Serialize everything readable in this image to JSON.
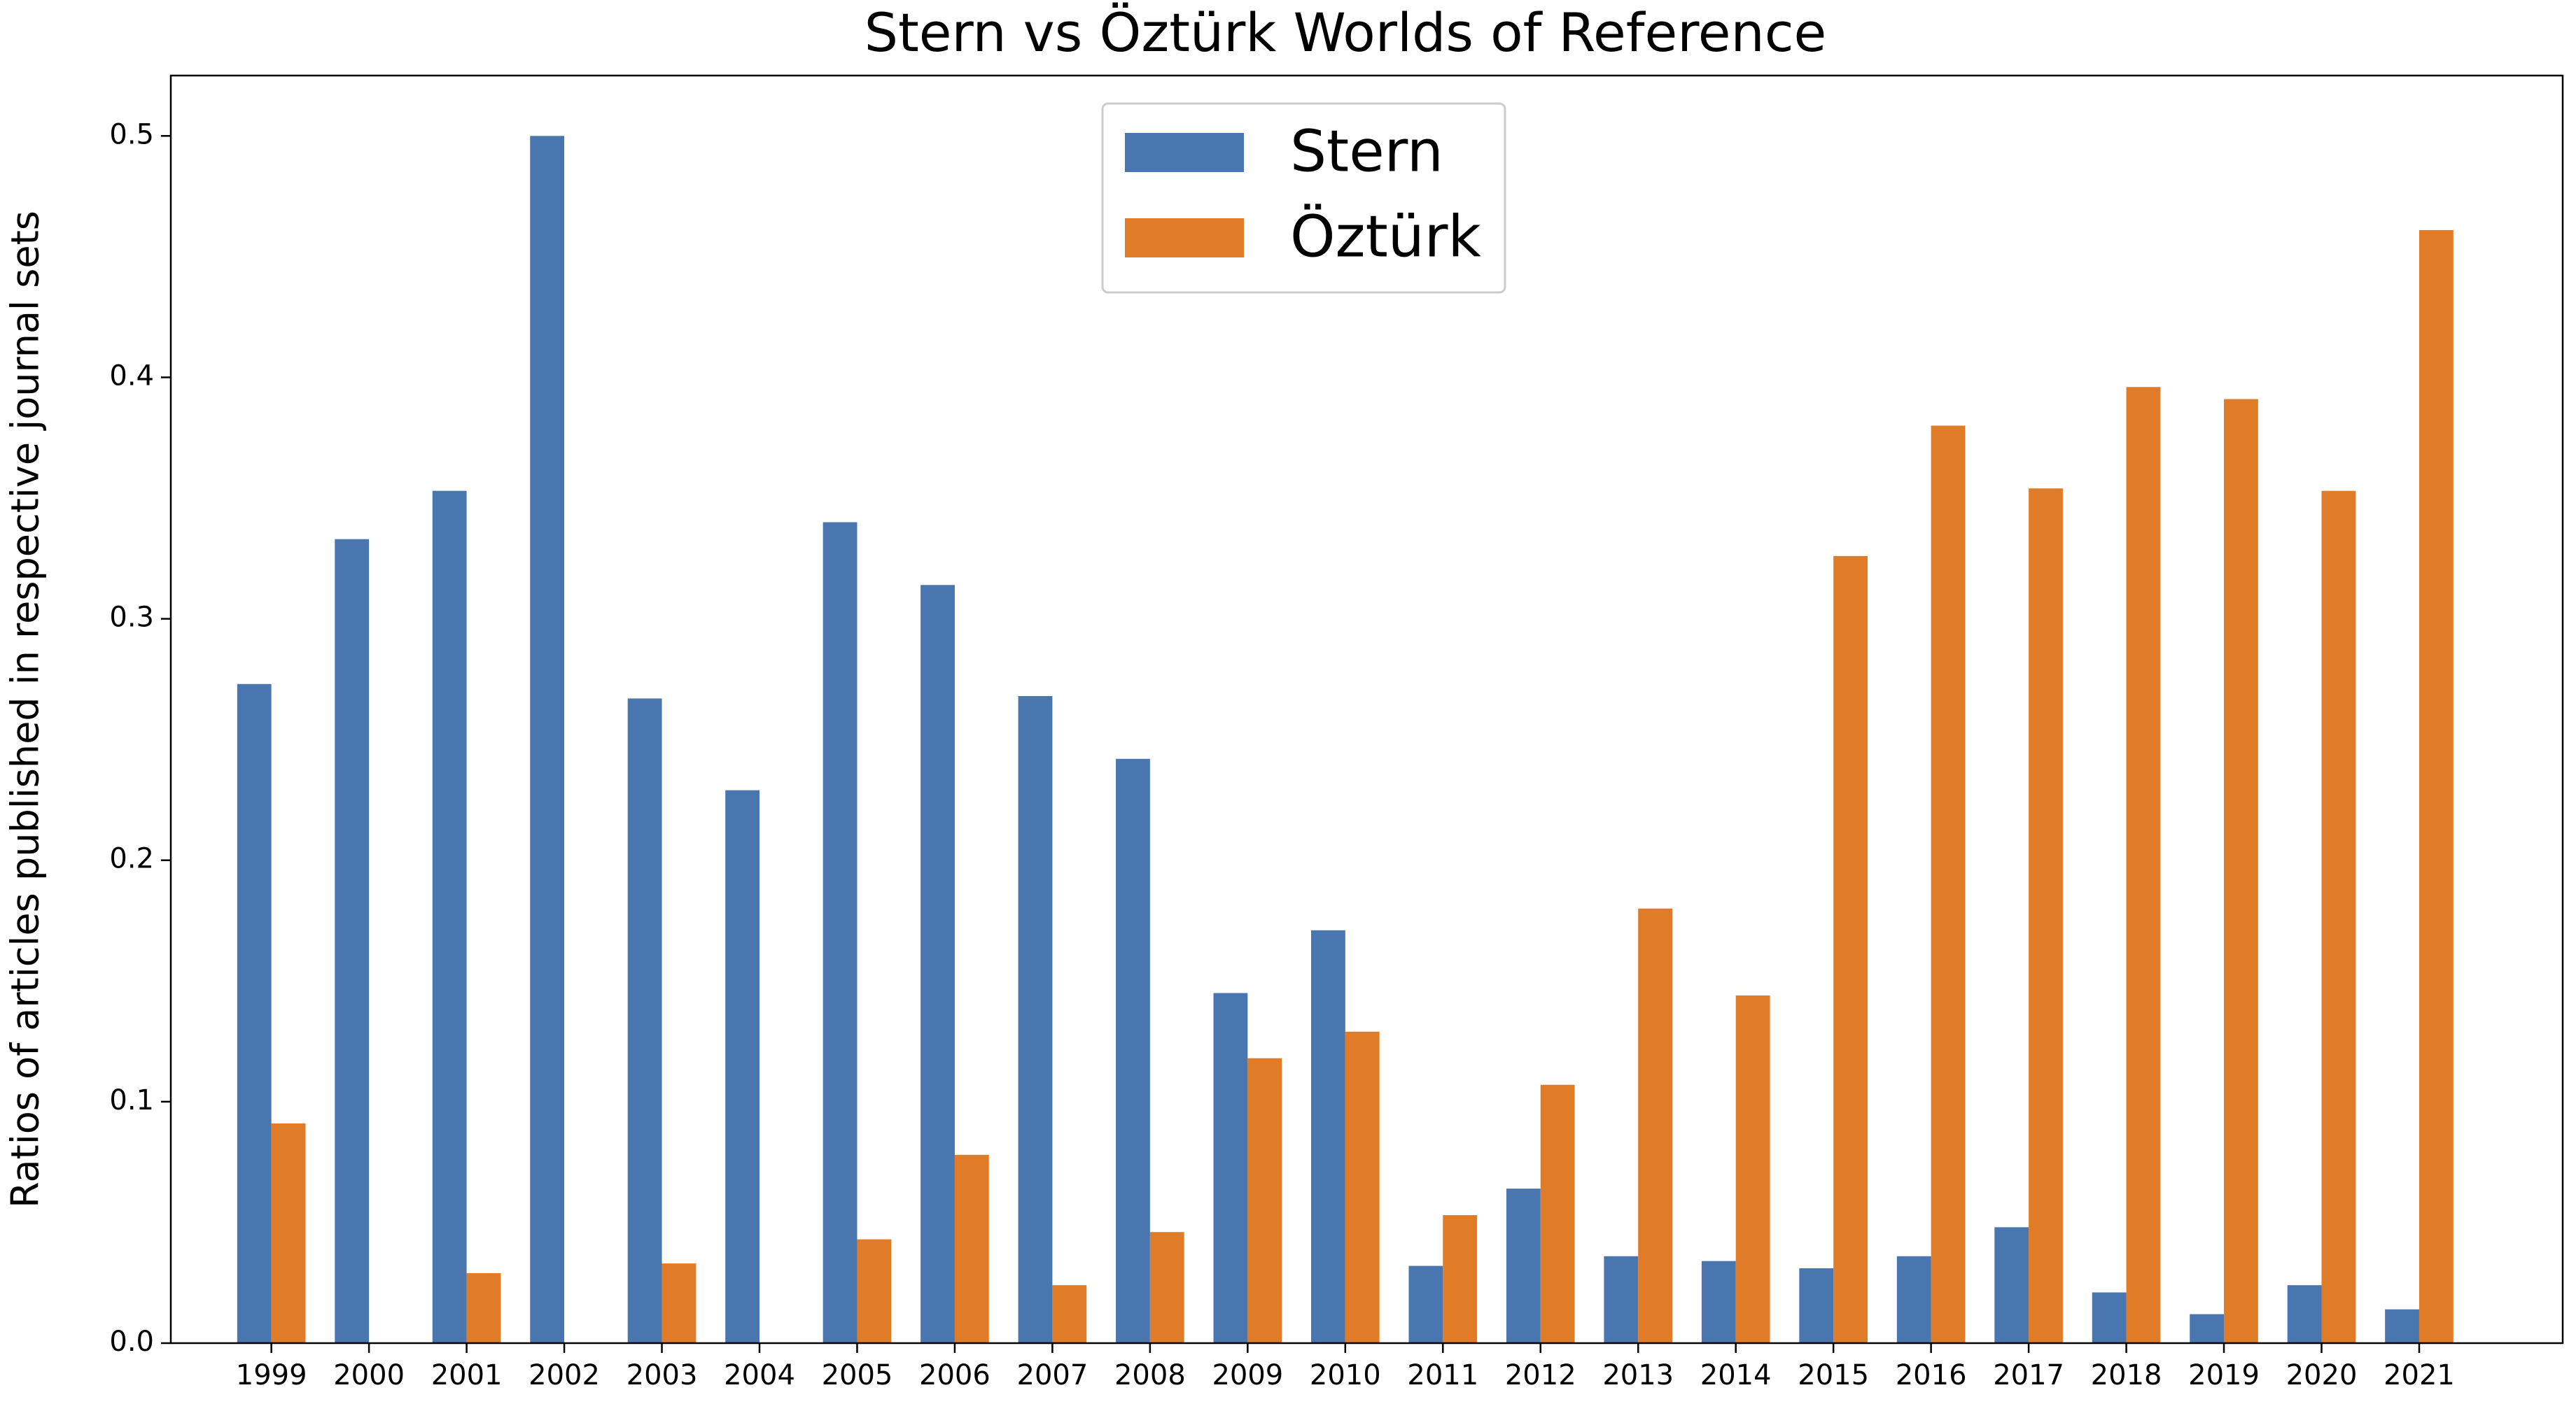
{
  "chart_data": {
    "type": "bar",
    "title": "Stern vs Öztürk Worlds of Reference",
    "y_label": "Ratios of articles published in respective journal sets",
    "categories": [
      "1999",
      "2000",
      "2001",
      "2002",
      "2003",
      "2004",
      "2005",
      "2006",
      "2007",
      "2008",
      "2009",
      "2010",
      "2011",
      "2012",
      "2013",
      "2014",
      "2015",
      "2016",
      "2017",
      "2018",
      "2019",
      "2020",
      "2021"
    ],
    "series": [
      {
        "name": "Stern",
        "color": "#4a76b0",
        "values": [
          0.273,
          0.333,
          0.353,
          0.5,
          0.267,
          0.229,
          0.34,
          0.314,
          0.268,
          0.242,
          0.145,
          0.171,
          0.032,
          0.064,
          0.036,
          0.034,
          0.031,
          0.036,
          0.048,
          0.021,
          0.012,
          0.024,
          0.014
        ]
      },
      {
        "name": "Öztürk",
        "color": "#e07b28",
        "values": [
          0.091,
          0,
          0.029,
          0,
          0.033,
          0,
          0.043,
          0.078,
          0.024,
          0.046,
          0.118,
          0.129,
          0.053,
          0.107,
          0.18,
          0.144,
          0.326,
          0.38,
          0.354,
          0.396,
          0.391,
          0.353,
          0.461
        ]
      }
    ],
    "ylim": [
      0,
      0.525
    ],
    "yticks": [
      {
        "value": 0,
        "label": "0.0"
      },
      0.1,
      0.2,
      0.3,
      0.4,
      0.5
    ],
    "grid": false,
    "legend": "upper center"
  }
}
